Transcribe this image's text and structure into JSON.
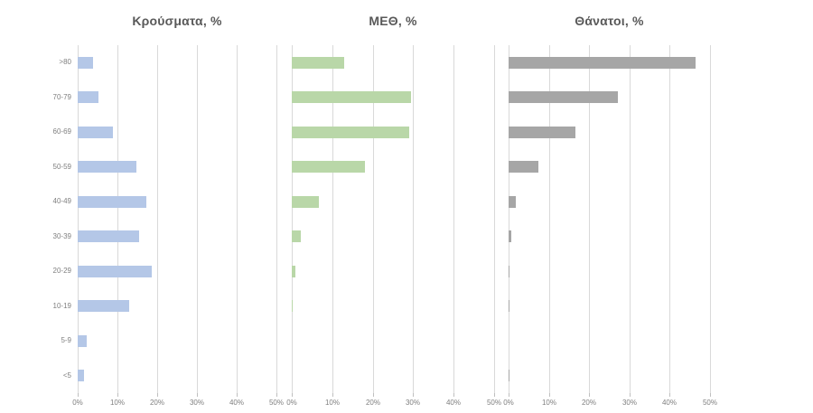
{
  "figure": {
    "background": "#ffffff"
  },
  "style": {
    "title_color": "#595959",
    "tick_label_color": "#7f7f7f",
    "category_label_color": "#7f7f7f",
    "gridline_color": "#d9d9d9",
    "tick_mark_color": "#bfbfbf"
  },
  "chart_data": [
    {
      "type": "bar",
      "orientation": "horizontal",
      "title": "Κρούσματα, %",
      "bar_color": "#b4c7e7",
      "categories": [
        ">80",
        "70-79",
        "60-69",
        "50-59",
        "40-49",
        "30-39",
        "20-29",
        "10-19",
        "5-9",
        "<5"
      ],
      "values": [
        3.9,
        5.3,
        8.8,
        14.8,
        17.2,
        15.5,
        18.6,
        12.9,
        2.2,
        1.5
      ],
      "xlabel": "",
      "ylabel": "",
      "xlim": [
        0,
        50
      ],
      "x_ticks": [
        "0%",
        "10%",
        "20%",
        "30%",
        "40%",
        "50%"
      ],
      "grid": true,
      "legend": false,
      "show_category_labels": true
    },
    {
      "type": "bar",
      "orientation": "horizontal",
      "title": "ΜΕΘ, %",
      "bar_color": "#b9d7a8",
      "categories": [
        ">80",
        "70-79",
        "60-69",
        "50-59",
        "40-49",
        "30-39",
        "20-29",
        "10-19",
        "5-9",
        "<5"
      ],
      "values": [
        13.0,
        29.4,
        29.1,
        18.1,
        6.8,
        2.2,
        1.0,
        0.3,
        0,
        0
      ],
      "xlabel": "",
      "ylabel": "",
      "xlim": [
        0,
        50
      ],
      "x_ticks": [
        "0%",
        "10%",
        "20%",
        "30%",
        "40%",
        "50%"
      ],
      "grid": true,
      "legend": false,
      "show_category_labels": false
    },
    {
      "type": "bar",
      "orientation": "horizontal",
      "title": "Θάνατοι, %",
      "bar_color": "#a6a6a6",
      "categories": [
        ">80",
        "70-79",
        "60-69",
        "50-59",
        "40-49",
        "30-39",
        "20-29",
        "10-19",
        "5-9",
        "<5"
      ],
      "values": [
        46.5,
        27.2,
        16.6,
        7.5,
        1.8,
        0.6,
        0.3,
        0.3,
        0,
        0.3
      ],
      "xlabel": "",
      "ylabel": "",
      "xlim": [
        0,
        50
      ],
      "x_ticks": [
        "0%",
        "10%",
        "20%",
        "30%",
        "40%",
        "50%"
      ],
      "grid": true,
      "legend": false,
      "show_category_labels": false
    }
  ]
}
